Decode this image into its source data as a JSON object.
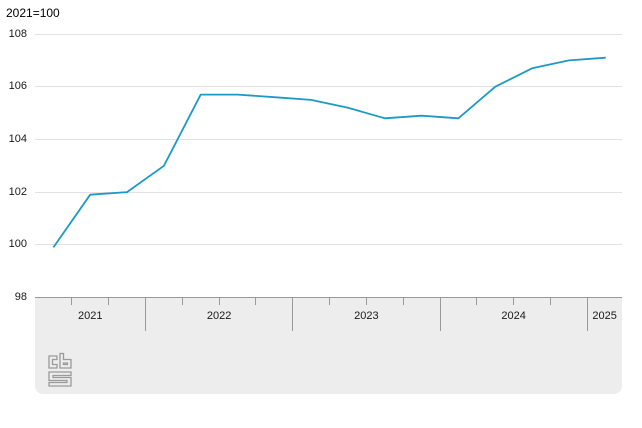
{
  "title": "2021=100",
  "chart_data": {
    "type": "line",
    "title": "2021=100",
    "xlabel": "",
    "ylabel": "",
    "legend": "none",
    "grid": true,
    "line_color": "#1b9ac6",
    "x": [
      "2021Q2",
      "2021Q3",
      "2021Q4",
      "2022Q1",
      "2022Q2",
      "2022Q3",
      "2022Q4",
      "2023Q1",
      "2023Q2",
      "2023Q3",
      "2023Q4",
      "2024Q1",
      "2024Q2",
      "2024Q3",
      "2024Q4",
      "2025Q1"
    ],
    "values": [
      99.9,
      101.9,
      102.0,
      103.0,
      105.7,
      105.7,
      105.6,
      105.5,
      105.2,
      104.8,
      104.9,
      104.8,
      106.0,
      106.7,
      107.0,
      107.1
    ],
    "y_ticks": [
      98,
      100,
      102,
      104,
      106,
      108
    ],
    "y_gridlines": [
      100,
      102,
      104,
      106,
      108
    ],
    "ylim": [
      98,
      108.5
    ],
    "x_year_labels": [
      "2021",
      "2022",
      "2023",
      "2024",
      "2025"
    ]
  },
  "footer": {
    "logo": "cbs"
  }
}
